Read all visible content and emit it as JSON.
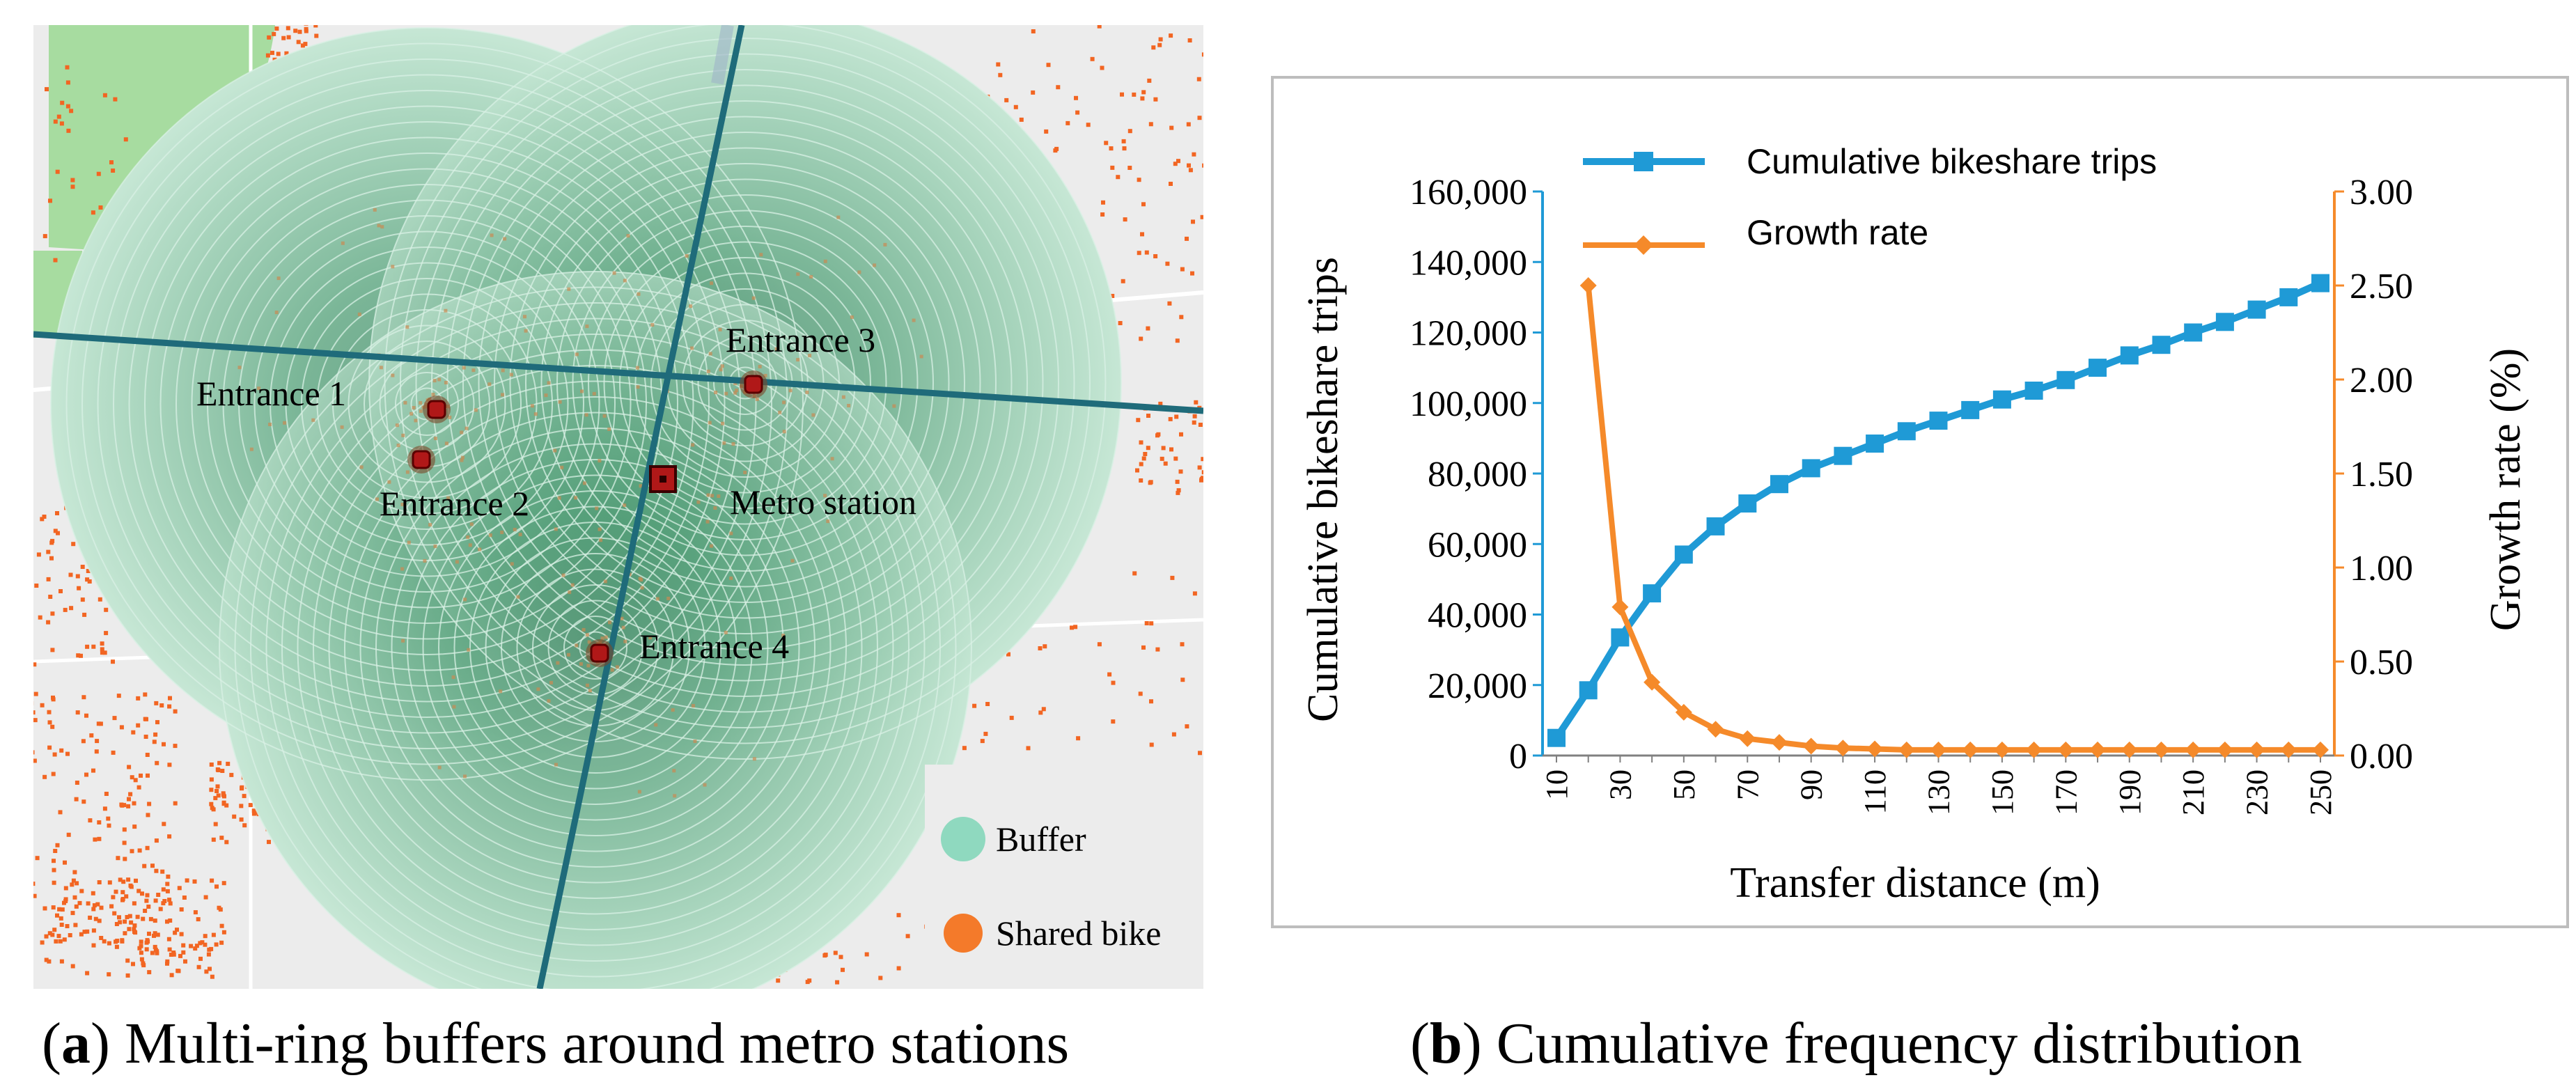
{
  "panel_a": {
    "caption_letter": "a",
    "caption_text": "Multi-ring buffers around metro stations",
    "labels": {
      "entrance_1": "Entrance 1",
      "entrance_2": "Entrance 2",
      "entrance_3": "Entrance 3",
      "entrance_4": "Entrance 4",
      "metro_station": "Metro station"
    },
    "legend": [
      {
        "label": "Buffer",
        "color": "#8fd9bf"
      },
      {
        "label": "Shared bike",
        "color": "#f47a2a"
      }
    ],
    "colors": {
      "map_background": "#ececec",
      "park": "#a7dca0",
      "buffer_fill": "#2f8a5d",
      "buffer_ring": "#d8f0e4",
      "road": "#1f6b7a",
      "entrance": "#b01818",
      "bike": "#f26522"
    }
  },
  "panel_b": {
    "caption_letter": "b",
    "caption_text": "Cumulative frequency distribution"
  },
  "chart_data": {
    "type": "line",
    "title": "",
    "xlabel": "Transfer distance (m)",
    "ylabel": "Cumulative bikeshare trips",
    "y2label": "Growth rate (%)",
    "x": [
      10,
      20,
      30,
      40,
      50,
      60,
      70,
      80,
      90,
      100,
      110,
      120,
      130,
      140,
      150,
      160,
      170,
      180,
      190,
      200,
      210,
      220,
      230,
      240,
      250
    ],
    "x_tick_labels": [
      "10",
      "30",
      "50",
      "70",
      "90",
      "110",
      "130",
      "150",
      "170",
      "190",
      "210",
      "230",
      "250"
    ],
    "ylim": [
      0,
      160000
    ],
    "y_tick_labels": [
      "0",
      "20,000",
      "40,000",
      "60,000",
      "80,000",
      "100,000",
      "120,000",
      "140,000",
      "160,000"
    ],
    "y2lim": [
      0,
      3.0
    ],
    "y2_tick_labels": [
      "0.00",
      "0.50",
      "1.00",
      "1.50",
      "2.00",
      "2.50",
      "3.00"
    ],
    "legend_position": "top",
    "series": [
      {
        "name": "Cumulative bikeshare trips",
        "axis": "left",
        "marker": "square",
        "color": "#1f9ad6",
        "values": [
          5000,
          18500,
          33500,
          46000,
          57000,
          65000,
          71500,
          77000,
          81500,
          85000,
          88500,
          92000,
          95000,
          98000,
          101000,
          103500,
          106500,
          110000,
          113500,
          116500,
          120000,
          123000,
          126500,
          130000,
          134000
        ]
      },
      {
        "name": "Growth rate",
        "axis": "right",
        "marker": "diamond",
        "color": "#f58a2a",
        "values": [
          null,
          2.5,
          0.79,
          0.39,
          0.23,
          0.14,
          0.09,
          0.07,
          0.05,
          0.04,
          0.035,
          0.03,
          0.03,
          0.03,
          0.03,
          0.03,
          0.03,
          0.03,
          0.03,
          0.03,
          0.03,
          0.03,
          0.03,
          0.03,
          0.03
        ]
      }
    ]
  }
}
